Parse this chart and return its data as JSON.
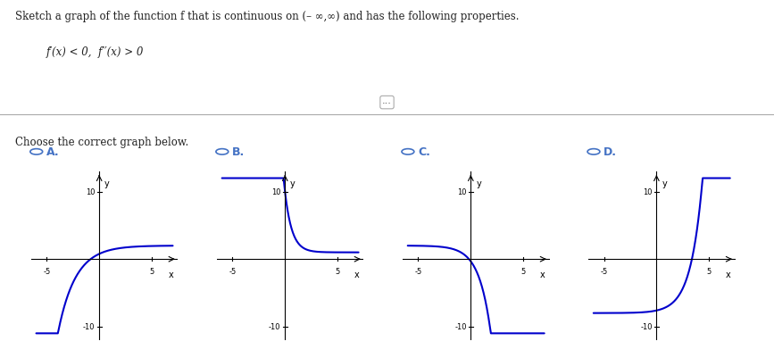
{
  "title_text": "Sketch a graph of the function f that is continuous on (– ∞,∞) and has the following properties.",
  "condition_text": "f′(x) < 0,  f′′(x) > 0",
  "choose_text": "Choose the correct graph below.",
  "labels": [
    "A.",
    "B.",
    "C.",
    "D."
  ],
  "bg_color": "#ffffff",
  "curve_color": "#0000cc",
  "axis_color": "#000000",
  "label_color": "#4472c4",
  "radio_color": "#4472c4",
  "xlim": [
    -6,
    7
  ],
  "ylim": [
    -11,
    12
  ],
  "xticks": [
    -5,
    5
  ],
  "yticks": [
    -10,
    10
  ],
  "xlabel": "x",
  "ylabel": "y"
}
